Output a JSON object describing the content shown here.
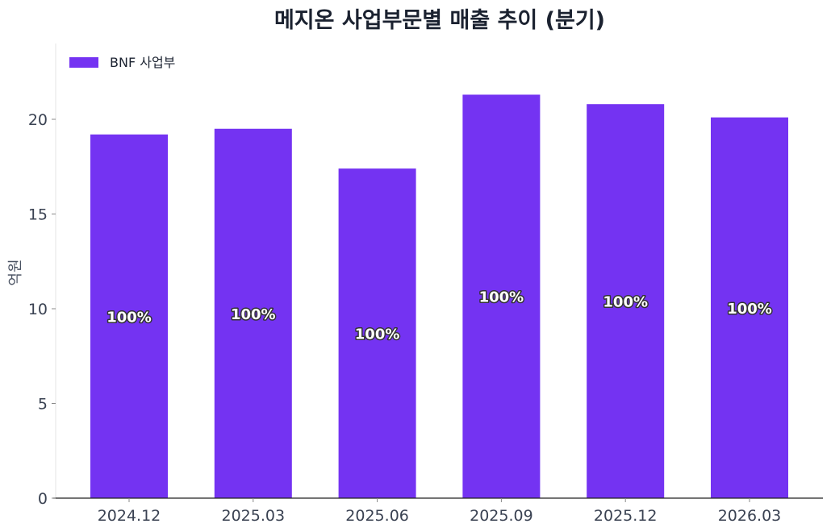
{
  "chart_data": {
    "type": "bar",
    "title": "메지온 사업부문별 매출 추이 (분기)",
    "xlabel": "",
    "ylabel": "억원",
    "categories": [
      "2024.12",
      "2025.03",
      "2025.06",
      "2025.09",
      "2025.12",
      "2026.03"
    ],
    "series": [
      {
        "name": "BNF 사업부",
        "color": "#7433f2",
        "values": [
          19.2,
          19.5,
          17.4,
          21.3,
          20.8,
          20.1
        ],
        "data_labels": [
          "100%",
          "100%",
          "100%",
          "100%",
          "100%",
          "100%"
        ]
      }
    ],
    "ylim": [
      0,
      24
    ],
    "yticks": [
      0,
      5,
      10,
      15,
      20
    ],
    "ytick_labels": [
      "0",
      "5",
      "10",
      "15",
      "20"
    ],
    "grid": false,
    "legend_position": "top-left"
  }
}
